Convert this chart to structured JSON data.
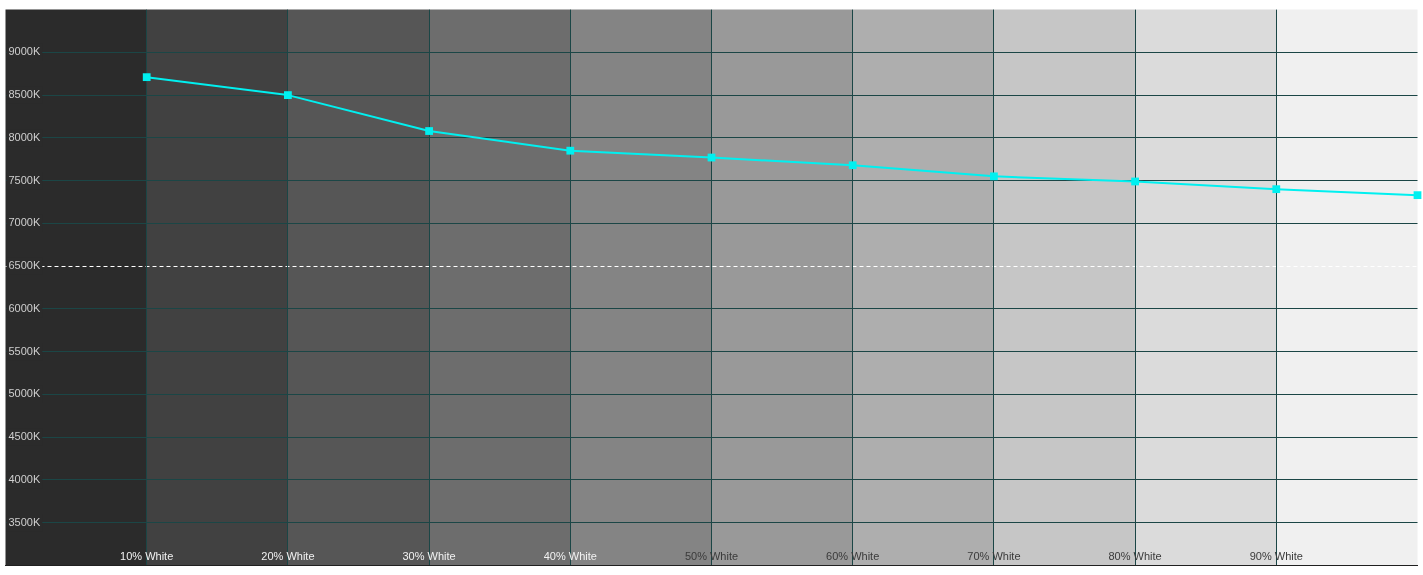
{
  "chart_data": {
    "type": "line",
    "x": [
      10,
      20,
      30,
      40,
      50,
      60,
      70,
      80,
      90,
      100
    ],
    "series": [
      {
        "color": "#00f0f0",
        "values": [
          8710,
          8500,
          8080,
          7850,
          7770,
          7680,
          7550,
          7490,
          7400,
          7330
        ]
      }
    ],
    "xlim": [
      0,
      100
    ],
    "xticks": [
      {
        "value": 10,
        "label": "10% White"
      },
      {
        "value": 20,
        "label": "20% White"
      },
      {
        "value": 30,
        "label": "30% White"
      },
      {
        "value": 40,
        "label": "40% White"
      },
      {
        "value": 50,
        "label": "50% White"
      },
      {
        "value": 60,
        "label": "60% White"
      },
      {
        "value": 70,
        "label": "70% White"
      },
      {
        "value": 80,
        "label": "80% White"
      },
      {
        "value": 90,
        "label": "90% White"
      }
    ],
    "ylim": [
      3000,
      9500
    ],
    "yticks": [
      {
        "value": 3500,
        "label": "3500K"
      },
      {
        "value": 4000,
        "label": "4000K"
      },
      {
        "value": 4500,
        "label": "4500K"
      },
      {
        "value": 5000,
        "label": "5000K"
      },
      {
        "value": 5500,
        "label": "5500K"
      },
      {
        "value": 6000,
        "label": "6000K"
      },
      {
        "value": 6500,
        "label": "6500K"
      },
      {
        "value": 7000,
        "label": "7000K"
      },
      {
        "value": 7500,
        "label": "7500K"
      },
      {
        "value": 8000,
        "label": "8000K"
      },
      {
        "value": 8500,
        "label": "8500K"
      },
      {
        "value": 9000,
        "label": "9000K"
      }
    ],
    "grid": true,
    "marker": "square",
    "line_style": "solid",
    "ref_lines": [
      {
        "axis": "y",
        "value": 6500,
        "color": "#ffffff",
        "line_style": "dashed"
      }
    ],
    "bands": [
      {
        "axis": "x",
        "from": 0,
        "to": 10,
        "color": "#2b2b2b"
      },
      {
        "axis": "x",
        "from": 10,
        "to": 20,
        "color": "#414141"
      },
      {
        "axis": "x",
        "from": 20,
        "to": 30,
        "color": "#565656"
      },
      {
        "axis": "x",
        "from": 30,
        "to": 40,
        "color": "#6d6d6d"
      },
      {
        "axis": "x",
        "from": 40,
        "to": 50,
        "color": "#848484"
      },
      {
        "axis": "x",
        "from": 50,
        "to": 60,
        "color": "#999999"
      },
      {
        "axis": "x",
        "from": 60,
        "to": 70,
        "color": "#aeaeae"
      },
      {
        "axis": "x",
        "from": 70,
        "to": 80,
        "color": "#c6c6c6"
      },
      {
        "axis": "x",
        "from": 80,
        "to": 90,
        "color": "#dbdbdb"
      },
      {
        "axis": "x",
        "from": 90,
        "to": 100,
        "color": "#f0f0f0"
      }
    ]
  }
}
